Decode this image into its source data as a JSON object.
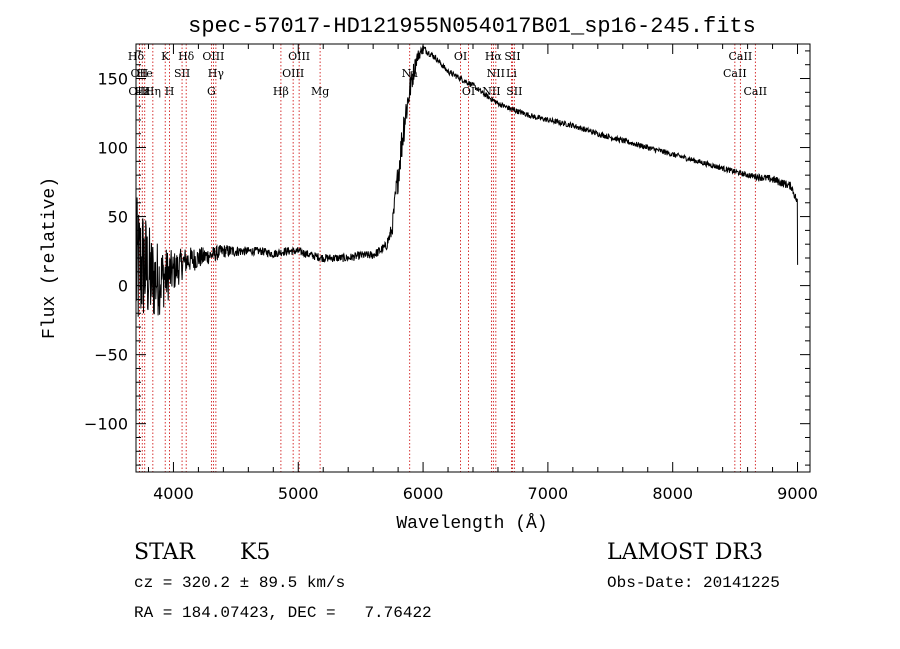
{
  "chart_data": {
    "type": "line",
    "title": "spec-57017-HD121955N054017B01_sp16-245.fits",
    "xlabel": "Wavelength (Å)",
    "ylabel": "Flux (relative)",
    "xlim": [
      3700,
      9100
    ],
    "ylim": [
      -135,
      175
    ],
    "xticks": [
      4000,
      5000,
      6000,
      7000,
      8000,
      9000
    ],
    "xtick_labels": [
      "4000",
      "5000",
      "6000",
      "7000",
      "8000",
      "9000"
    ],
    "yticks": [
      -100,
      -50,
      0,
      50,
      100,
      150
    ],
    "ytick_labels": [
      "−100",
      "−50",
      "0",
      "50",
      "100",
      "150"
    ],
    "series": [
      {
        "name": "flux",
        "x": [
          3700,
          3760,
          3820,
          3900,
          4000,
          4100,
          4200,
          4300,
          4400,
          4500,
          4600,
          4700,
          4800,
          4900,
          5000,
          5100,
          5200,
          5300,
          5400,
          5500,
          5600,
          5700,
          5750,
          5800,
          5850,
          5900,
          5950,
          6000,
          6100,
          6200,
          6300,
          6400,
          6500,
          6600,
          6700,
          6800,
          6900,
          7000,
          7200,
          7400,
          7600,
          7800,
          8000,
          8200,
          8400,
          8600,
          8800,
          8950,
          9000,
          9001
        ],
        "y": [
          10,
          15,
          5,
          5,
          10,
          18,
          20,
          22,
          25,
          25,
          25,
          25,
          23,
          25,
          25,
          22,
          20,
          20,
          20,
          22,
          22,
          28,
          40,
          80,
          120,
          145,
          165,
          172,
          165,
          155,
          150,
          145,
          138,
          132,
          128,
          125,
          122,
          120,
          116,
          110,
          105,
          100,
          95,
          90,
          85,
          80,
          77,
          72,
          60,
          15
        ],
        "noise": [
          55,
          45,
          35,
          25,
          15,
          10,
          8,
          6,
          5,
          4,
          3,
          3,
          3,
          3,
          3,
          3,
          3,
          3,
          3,
          3,
          3,
          4,
          6,
          12,
          15,
          10,
          5,
          3,
          2,
          2,
          2,
          2,
          2,
          2,
          2,
          2,
          2,
          2,
          2,
          2,
          2,
          2,
          2,
          2,
          2,
          2,
          3,
          3,
          3,
          0
        ]
      }
    ],
    "spectral_lines": [
      {
        "label": "Hδ",
        "x": 3700,
        "row": 0
      },
      {
        "label": "OII",
        "x": 3727,
        "row": 1
      },
      {
        "label": "OIII",
        "x": 3727,
        "row": 2
      },
      {
        "label": "Hε",
        "x": 3750,
        "row": 2
      },
      {
        "label": "He",
        "x": 3770,
        "row": 1
      },
      {
        "label": "Hη",
        "x": 3835,
        "row": 2
      },
      {
        "label": "K",
        "x": 3934,
        "row": 0
      },
      {
        "label": "H",
        "x": 3969,
        "row": 2
      },
      {
        "label": "SII",
        "x": 4069,
        "row": 1
      },
      {
        "label": "Hδ",
        "x": 4102,
        "row": 0
      },
      {
        "label": "G",
        "x": 4304,
        "row": 2
      },
      {
        "label": "OIII",
        "x": 4320,
        "row": 0
      },
      {
        "label": "Hγ",
        "x": 4340,
        "row": 1
      },
      {
        "label": "Hβ",
        "x": 4861,
        "row": 2
      },
      {
        "label": "OIII",
        "x": 4959,
        "row": 1
      },
      {
        "label": "OIII",
        "x": 5007,
        "row": 0
      },
      {
        "label": "Mg",
        "x": 5175,
        "row": 2
      },
      {
        "label": "Na",
        "x": 5893,
        "row": 1
      },
      {
        "label": "OI",
        "x": 6300,
        "row": 0
      },
      {
        "label": "OI",
        "x": 6364,
        "row": 2
      },
      {
        "label": "NII",
        "x": 6548,
        "row": 2
      },
      {
        "label": "Hα",
        "x": 6563,
        "row": 0
      },
      {
        "label": "NII",
        "x": 6583,
        "row": 1
      },
      {
        "label": "SII",
        "x": 6716,
        "row": 0
      },
      {
        "label": "Li",
        "x": 6708,
        "row": 1
      },
      {
        "label": "SII",
        "x": 6731,
        "row": 2
      },
      {
        "label": "CaII",
        "x": 8498,
        "row": 1
      },
      {
        "label": "CaII",
        "x": 8542,
        "row": 0
      },
      {
        "label": "CaII",
        "x": 8662,
        "row": 2
      }
    ]
  },
  "info": {
    "class_label": "STAR",
    "subclass": "K5",
    "survey": "LAMOST DR3",
    "cz": "cz = 320.2 ± 89.5 km/s",
    "obs_date": "Obs-Date: 20141225",
    "coords": "RA = 184.07423, DEC =   7.76422"
  }
}
